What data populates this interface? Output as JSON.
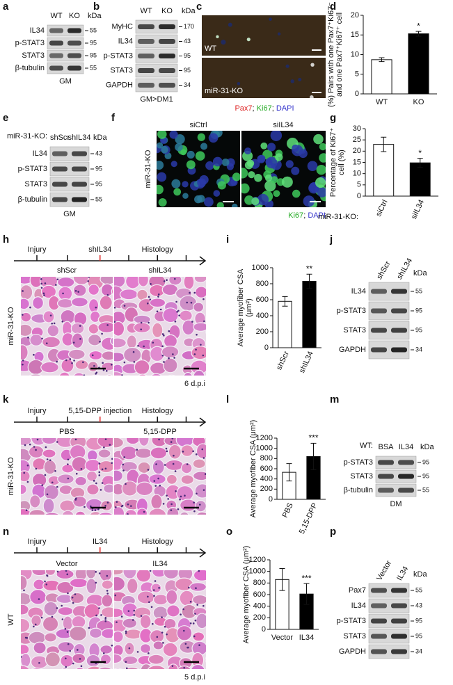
{
  "chart_data": [
    {
      "type": "bar",
      "label": "d",
      "ylabel": [
        "(%) Pairs with one Pax7⁺Ki67⁻",
        "and one Pax7⁺Ki67⁺ cell"
      ],
      "categories": [
        "WT",
        "KO"
      ],
      "values": [
        8.7,
        15.3
      ],
      "errors": [
        0.5,
        0.6
      ],
      "colors": [
        "#ffffff",
        "#000000"
      ],
      "ylim": [
        0,
        20
      ],
      "yticks": [
        0,
        5,
        10,
        15,
        20
      ],
      "annotations": [
        {
          "x": "KO",
          "text": "*"
        }
      ]
    },
    {
      "type": "bar",
      "label": "g",
      "ylabel": [
        "Percentage of Ki67⁺",
        "cell (%)"
      ],
      "xlabel": "miR-31-KO:",
      "categories": [
        "siCtrl",
        "siIL34"
      ],
      "values": [
        23,
        14.8
      ],
      "errors": [
        3.2,
        2
      ],
      "colors": [
        "#ffffff",
        "#000000"
      ],
      "ylim": [
        0,
        30
      ],
      "yticks": [
        0,
        5,
        10,
        15,
        20,
        25,
        30
      ],
      "annotations": [
        {
          "x": "siIL34",
          "text": "*"
        }
      ]
    },
    {
      "type": "bar",
      "label": "i",
      "ylabel": [
        "Average myofiber CSA",
        "(μm²)"
      ],
      "categories": [
        "shScr",
        "shIL34"
      ],
      "values": [
        580,
        830
      ],
      "errors": [
        60,
        90
      ],
      "colors": [
        "#ffffff",
        "#000000"
      ],
      "ylim": [
        0,
        1000
      ],
      "yticks": [
        0,
        200,
        400,
        600,
        800,
        1000
      ],
      "annotations": [
        {
          "x": "shIL34",
          "text": "**"
        }
      ]
    },
    {
      "type": "bar",
      "label": "l",
      "ylabel": [
        "Average myofiber CSA (μm²)"
      ],
      "categories": [
        "PBS",
        "5,15-DPP"
      ],
      "values": [
        530,
        840
      ],
      "errors": [
        170,
        260
      ],
      "colors": [
        "#ffffff",
        "#000000"
      ],
      "ylim": [
        0,
        1200
      ],
      "yticks": [
        0,
        200,
        400,
        600,
        800,
        1000,
        1200
      ],
      "annotations": [
        {
          "x": "5,15-DPP",
          "text": "***"
        }
      ]
    },
    {
      "type": "bar",
      "label": "o",
      "ylabel": [
        "Average myofiber CSA (μm²)"
      ],
      "categories": [
        "Vector",
        "IL34"
      ],
      "values": [
        860,
        610
      ],
      "errors": [
        190,
        180
      ],
      "colors": [
        "#ffffff",
        "#000000"
      ],
      "ylim": [
        0,
        1200
      ],
      "yticks": [
        0,
        200,
        400,
        600,
        800,
        1000,
        1200
      ],
      "annotations": [
        {
          "x": "IL34",
          "text": "***"
        }
      ]
    }
  ],
  "panels": {
    "a": {
      "label": "a",
      "columns": [
        "WT",
        "KO"
      ],
      "unit": "kDa",
      "rows": [
        "IL34",
        "p-STAT3",
        "STAT3",
        "β-tubulin"
      ],
      "markers": [
        "55",
        "95",
        "95",
        "55"
      ],
      "condition": "GM"
    },
    "b": {
      "label": "b",
      "columns": [
        "WT",
        "KO"
      ],
      "unit": "kDa",
      "rows": [
        "MyHC",
        "IL34",
        "p-STAT3",
        "STAT3",
        "GAPDH"
      ],
      "markers": [
        "170",
        "43",
        "95",
        "95",
        "34"
      ],
      "condition": "GM>DM1"
    },
    "c": {
      "label": "c",
      "images": [
        "WT",
        "miR-31-KO"
      ],
      "legend": [
        "Pax7",
        "; ",
        "Ki67",
        "; ",
        "DAPI"
      ],
      "legend_colors": [
        "#d22",
        "#111",
        "#2a2",
        "#111",
        "#33c"
      ]
    },
    "e": {
      "label": "e",
      "header": "miR-31-KO:",
      "columns": [
        "shScr",
        "shIL34"
      ],
      "unit": "kDa",
      "rows": [
        "IL34",
        "p-STAT3",
        "STAT3",
        "β-tubulin"
      ],
      "markers": [
        "43",
        "95",
        "95",
        "55"
      ],
      "condition": "GM"
    },
    "f": {
      "label": "f",
      "images": [
        "siCtrl",
        "siIL34"
      ],
      "side": "miR-31-KO",
      "legend": [
        "Ki67",
        "; ",
        "DAPI"
      ],
      "legend_colors": [
        "#2a2",
        "#111",
        "#33c"
      ]
    },
    "h": {
      "label": "h",
      "timeline": [
        "Injury",
        "shIL34",
        "Histology"
      ],
      "images": [
        "shScr",
        "shIL34"
      ],
      "side": "miR-31-KO",
      "footnote": "6 d.p.i"
    },
    "j": {
      "label": "j",
      "columns": [
        "shScr",
        "shIL34"
      ],
      "unit": "kDa",
      "rows": [
        "IL34",
        "p-STAT3",
        "STAT3",
        "GAPDH"
      ],
      "markers": [
        "55",
        "95",
        "95",
        "34"
      ]
    },
    "k": {
      "label": "k",
      "timeline": [
        "Injury",
        "5,15-DPP injection",
        "Histology"
      ],
      "images": [
        "PBS",
        "5,15-DPP"
      ],
      "side": "miR-31-KO"
    },
    "m": {
      "label": "m",
      "header": "WT:",
      "columns": [
        "BSA",
        "IL34"
      ],
      "unit": "kDa",
      "rows": [
        "p-STAT3",
        "STAT3",
        "β-tubulin"
      ],
      "markers": [
        "95",
        "95",
        "55"
      ],
      "condition": "DM"
    },
    "n": {
      "label": "n",
      "timeline": [
        "Injury",
        "IL34",
        "Histology"
      ],
      "images": [
        "Vector",
        "IL34"
      ],
      "side": "WT",
      "footnote": "5 d.p.i"
    },
    "p": {
      "label": "p",
      "columns": [
        "Vector",
        "IL34"
      ],
      "unit": "kDa",
      "rows": [
        "Pax7",
        "IL34",
        "p-STAT3",
        "STAT3",
        "GAPDH"
      ],
      "markers": [
        "55",
        "43",
        "95",
        "95",
        "34"
      ]
    }
  }
}
